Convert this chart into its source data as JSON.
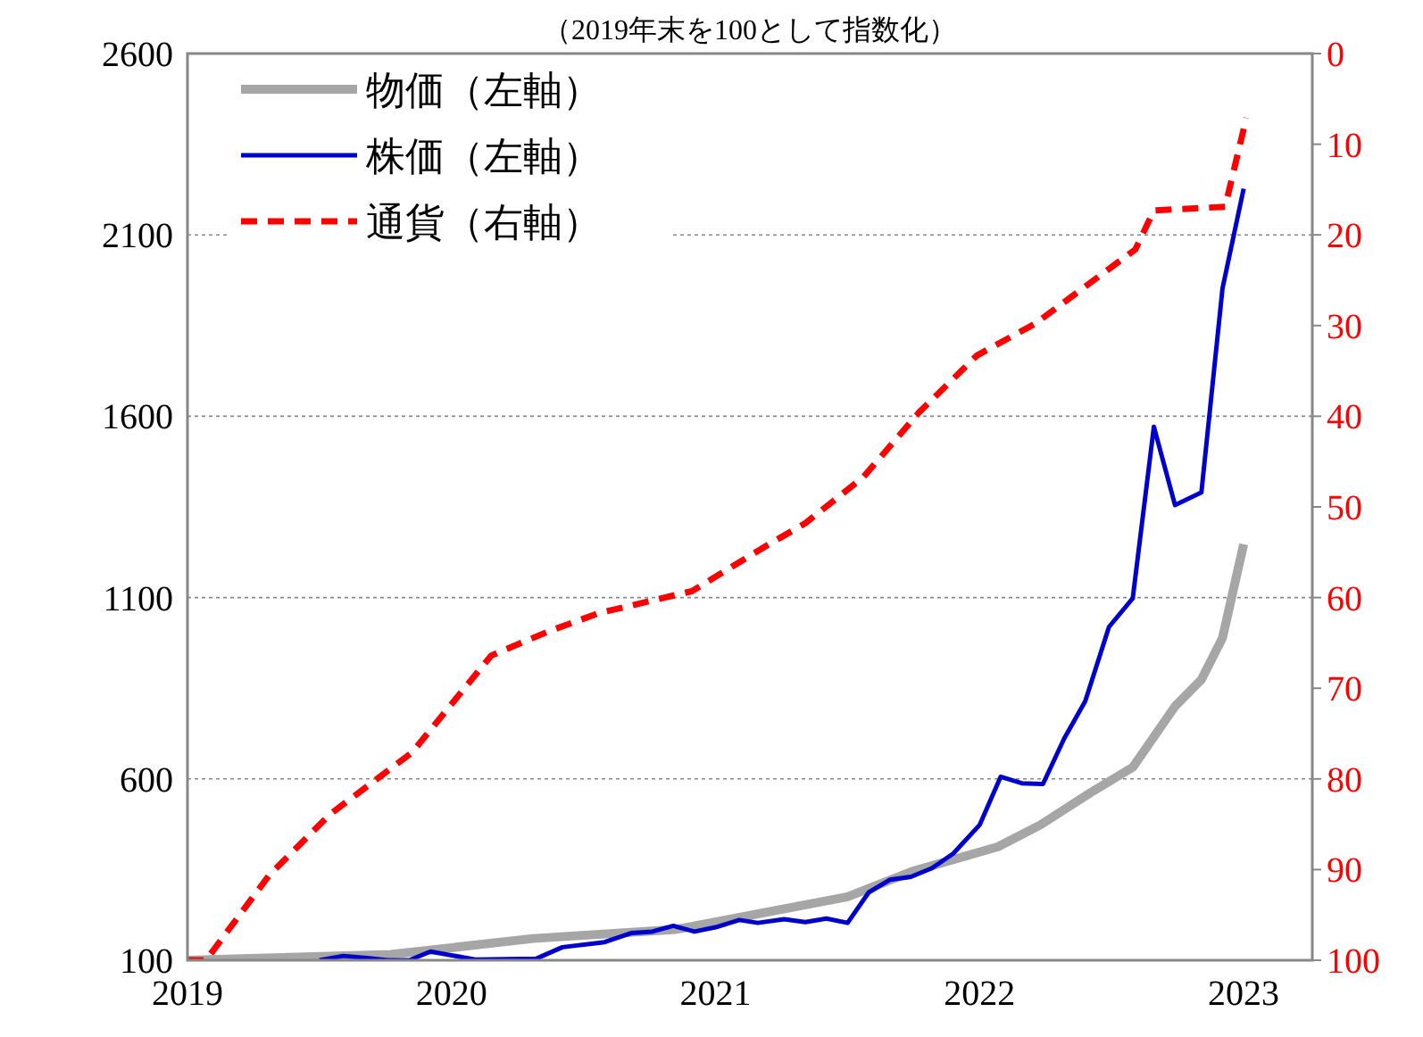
{
  "chart_data": {
    "type": "line",
    "title": "（2019年末を100として指数化）",
    "xlim": [
      2019,
      2023.26
    ],
    "xticks": [
      2019,
      2020,
      2021,
      2022,
      2023
    ],
    "ylim": [
      100,
      2600
    ],
    "yticks": [
      100,
      600,
      1100,
      1600,
      2100,
      2600
    ],
    "y2lim": [
      100,
      0
    ],
    "y2ticks": [
      0,
      10,
      20,
      30,
      40,
      50,
      60,
      70,
      80,
      90,
      100
    ],
    "grid": "y",
    "legend": "top left",
    "series": [
      {
        "name": "物価（左軸）",
        "color": "#a6a6a6",
        "line_style": "solid",
        "x": [
          2019,
          2019.77,
          2020.31,
          2020.85,
          2021.5,
          2021.74,
          2022.07,
          2022.23,
          2022.42,
          2022.58,
          2022.74,
          2022.84,
          2022.92,
          2023.0
        ],
        "values": [
          100,
          116,
          160,
          185,
          275,
          344,
          413,
          473,
          562,
          632,
          800,
          874,
          989,
          1247
        ]
      },
      {
        "name": "株価（左軸）",
        "color": "#0000cc",
        "line_style": "solid",
        "x": [
          2019.5,
          2019.59,
          2019.68,
          2019.76,
          2019.84,
          2019.92,
          2020.09,
          2020.32,
          2020.42,
          2020.58,
          2020.68,
          2020.76,
          2020.84,
          2020.92,
          2021.0,
          2021.09,
          2021.16,
          2021.26,
          2021.34,
          2021.42,
          2021.5,
          2021.58,
          2021.66,
          2021.74,
          2021.82,
          2021.9,
          2022.0,
          2022.08,
          2022.16,
          2022.24,
          2022.32,
          2022.4,
          2022.49,
          2022.58,
          2022.66,
          2022.74,
          2022.84,
          2022.92,
          2023.0
        ],
        "values": [
          100,
          112,
          106,
          100,
          100,
          124,
          102,
          104,
          136,
          150,
          175,
          179,
          195,
          179,
          191,
          211,
          203,
          213,
          205,
          215,
          203,
          287,
          322,
          330,
          354,
          394,
          473,
          606,
          588,
          586,
          711,
          814,
          1019,
          1098,
          1571,
          1355,
          1390,
          1953,
          2227
        ]
      },
      {
        "name": "通貨（右軸）",
        "color": "#ff0000",
        "line_style": "dashed",
        "axis": "y2",
        "x": [
          2019,
          2019.07,
          2019.31,
          2019.54,
          2019.85,
          2020.15,
          2020.37,
          2020.56,
          2020.91,
          2021.18,
          2021.34,
          2021.56,
          2021.77,
          2021.99,
          2022.21,
          2022.59,
          2022.66,
          2022.93,
          2023.01
        ],
        "values": [
          100,
          100,
          90.6,
          83.9,
          77.1,
          66.4,
          63.7,
          61.7,
          59.3,
          54.5,
          51.8,
          46.7,
          39.6,
          33.3,
          29.8,
          21.6,
          17.3,
          16.9,
          7.1
        ]
      }
    ]
  }
}
